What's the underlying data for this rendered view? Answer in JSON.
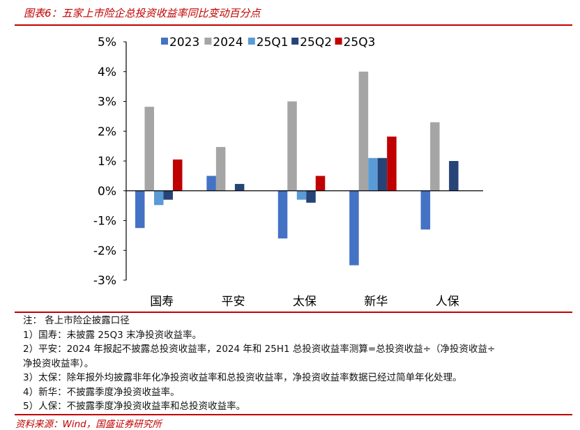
{
  "title": "图表6：五家上市险企总投资收益率同比变动百分点",
  "chart_data": {
    "type": "bar",
    "title": "五家上市险企总投资收益率同比变动百分点",
    "categories": [
      "国寿",
      "平安",
      "太保",
      "新华",
      "人保"
    ],
    "series": [
      {
        "name": "2023",
        "color": "#4472c4",
        "values": [
          -1.25,
          0.5,
          -1.6,
          -2.5,
          -1.3
        ]
      },
      {
        "name": "2024",
        "color": "#a5a5a5",
        "values": [
          2.82,
          1.47,
          3.0,
          4.0,
          2.3
        ]
      },
      {
        "name": "25Q1",
        "color": "#5b9bd5",
        "values": [
          -0.48,
          null,
          -0.3,
          1.1,
          null
        ]
      },
      {
        "name": "25Q2",
        "color": "#264478",
        "values": [
          -0.3,
          0.23,
          -0.4,
          1.1,
          1.0
        ]
      },
      {
        "name": "25Q3",
        "color": "#c00000",
        "values": [
          1.05,
          null,
          0.5,
          1.82,
          null
        ]
      }
    ],
    "yticks": [
      "5%",
      "4%",
      "3%",
      "2%",
      "1%",
      "0%",
      "-1%",
      "-2%",
      "-3%"
    ],
    "ylim": [
      -3,
      5
    ],
    "unit": "%",
    "legend": "top",
    "grid": false
  },
  "notes": [
    "注：  各上市险企披露口径",
    "1）国寿：未披露 25Q3 末净投资收益率。",
    "2）平安：2024 年报起不披露总投资收益率，2024 年和 25H1 总投资收益率测算=总投资收益÷（净投资收益÷",
    "净投资收益率）。",
    "3）太保：除年报外均披露非年化净投资收益率和总投资收益率，净投资收益率数据已经过简单年化处理。",
    "4）新华：不披露季度净投资收益率。",
    "5）人保：不披露季度净投资收益率和总投资收益率。"
  ],
  "source": "资料来源：Wind，国盛证券研究所"
}
